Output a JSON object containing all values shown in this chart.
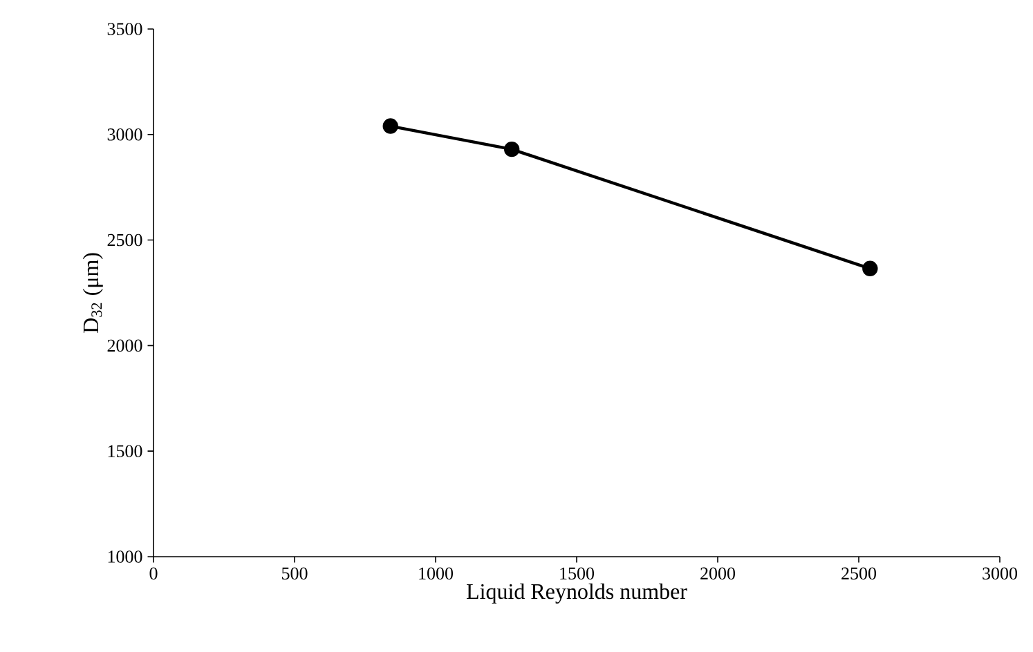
{
  "chart_data": {
    "type": "line",
    "xlabel": "Liquid Reynolds number",
    "ylabel": "D$_{32}$ (μm)",
    "x": [
      840,
      1270,
      2540
    ],
    "series": [
      {
        "color": "#000000",
        "values": [
          3040,
          2930,
          2365
        ]
      }
    ],
    "xlim": [
      0,
      3000
    ],
    "ylim": [
      1000,
      3500
    ],
    "xticks": [
      0,
      500,
      1000,
      1500,
      2000,
      2500,
      3000
    ],
    "yticks": [
      1000,
      1500,
      2000,
      2500,
      3000,
      3500
    ],
    "grid": false,
    "marker": "circle",
    "line_style": "solid"
  }
}
